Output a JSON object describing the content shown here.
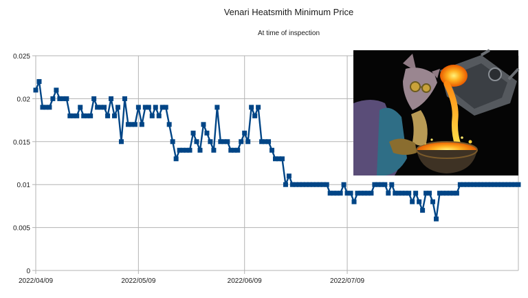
{
  "chart_data": {
    "type": "line",
    "title": "Venari Heatsmith Minimum Price",
    "subtitle": "At time of inspection",
    "xlabel": "",
    "ylabel": "",
    "ylim": [
      0,
      0.025
    ],
    "y_ticks": [
      "0",
      "0.005",
      "0.01",
      "0.015",
      "0.02",
      "0.025"
    ],
    "x_range": [
      "2022-04-09",
      "2022-08-28"
    ],
    "x_ticks": [
      {
        "label": "2022/04/09",
        "date": "2022-04-09"
      },
      {
        "label": "2022/05/09",
        "date": "2022-05-09"
      },
      {
        "label": "2022/06/09",
        "date": "2022-06-09"
      },
      {
        "label": "2022/07/09",
        "date": "2022-07-09"
      }
    ],
    "grid": true,
    "legend": "none",
    "line_color": "#004586",
    "marker": "square",
    "image_inset": "alchemist creature pouring molten metal from a crucible",
    "series": [
      {
        "points": [
          [
            "2022-04-09",
            0.021
          ],
          [
            "2022-04-10",
            0.022
          ],
          [
            "2022-04-11",
            0.019
          ],
          [
            "2022-04-12",
            0.019
          ],
          [
            "2022-04-13",
            0.019
          ],
          [
            "2022-04-14",
            0.02
          ],
          [
            "2022-04-15",
            0.021
          ],
          [
            "2022-04-16",
            0.02
          ],
          [
            "2022-04-17",
            0.02
          ],
          [
            "2022-04-18",
            0.02
          ],
          [
            "2022-04-19",
            0.018
          ],
          [
            "2022-04-20",
            0.018
          ],
          [
            "2022-04-21",
            0.018
          ],
          [
            "2022-04-22",
            0.019
          ],
          [
            "2022-04-23",
            0.018
          ],
          [
            "2022-04-24",
            0.018
          ],
          [
            "2022-04-25",
            0.018
          ],
          [
            "2022-04-26",
            0.02
          ],
          [
            "2022-04-27",
            0.019
          ],
          [
            "2022-04-28",
            0.019
          ],
          [
            "2022-04-29",
            0.019
          ],
          [
            "2022-04-30",
            0.018
          ],
          [
            "2022-05-01",
            0.02
          ],
          [
            "2022-05-02",
            0.018
          ],
          [
            "2022-05-03",
            0.019
          ],
          [
            "2022-05-04",
            0.015
          ],
          [
            "2022-05-05",
            0.02
          ],
          [
            "2022-05-06",
            0.017
          ],
          [
            "2022-05-07",
            0.017
          ],
          [
            "2022-05-08",
            0.017
          ],
          [
            "2022-05-09",
            0.019
          ],
          [
            "2022-05-10",
            0.017
          ],
          [
            "2022-05-11",
            0.019
          ],
          [
            "2022-05-12",
            0.019
          ],
          [
            "2022-05-13",
            0.018
          ],
          [
            "2022-05-14",
            0.019
          ],
          [
            "2022-05-15",
            0.018
          ],
          [
            "2022-05-16",
            0.019
          ],
          [
            "2022-05-17",
            0.019
          ],
          [
            "2022-05-18",
            0.017
          ],
          [
            "2022-05-19",
            0.015
          ],
          [
            "2022-05-20",
            0.013
          ],
          [
            "2022-05-21",
            0.014
          ],
          [
            "2022-05-22",
            0.014
          ],
          [
            "2022-05-23",
            0.014
          ],
          [
            "2022-05-24",
            0.014
          ],
          [
            "2022-05-25",
            0.016
          ],
          [
            "2022-05-26",
            0.015
          ],
          [
            "2022-05-27",
            0.014
          ],
          [
            "2022-05-28",
            0.017
          ],
          [
            "2022-05-29",
            0.016
          ],
          [
            "2022-05-30",
            0.015
          ],
          [
            "2022-05-31",
            0.014
          ],
          [
            "2022-06-01",
            0.019
          ],
          [
            "2022-06-02",
            0.015
          ],
          [
            "2022-06-03",
            0.015
          ],
          [
            "2022-06-04",
            0.015
          ],
          [
            "2022-06-05",
            0.014
          ],
          [
            "2022-06-06",
            0.014
          ],
          [
            "2022-06-07",
            0.014
          ],
          [
            "2022-06-08",
            0.015
          ],
          [
            "2022-06-09",
            0.016
          ],
          [
            "2022-06-10",
            0.015
          ],
          [
            "2022-06-11",
            0.019
          ],
          [
            "2022-06-12",
            0.018
          ],
          [
            "2022-06-13",
            0.019
          ],
          [
            "2022-06-14",
            0.015
          ],
          [
            "2022-06-15",
            0.015
          ],
          [
            "2022-06-16",
            0.015
          ],
          [
            "2022-06-17",
            0.014
          ],
          [
            "2022-06-18",
            0.013
          ],
          [
            "2022-06-19",
            0.013
          ],
          [
            "2022-06-20",
            0.013
          ],
          [
            "2022-06-21",
            0.01
          ],
          [
            "2022-06-22",
            0.011
          ],
          [
            "2022-06-23",
            0.01
          ],
          [
            "2022-06-24",
            0.01
          ],
          [
            "2022-06-25",
            0.01
          ],
          [
            "2022-06-26",
            0.01
          ],
          [
            "2022-06-27",
            0.01
          ],
          [
            "2022-06-28",
            0.01
          ],
          [
            "2022-06-29",
            0.01
          ],
          [
            "2022-06-30",
            0.01
          ],
          [
            "2022-07-01",
            0.01
          ],
          [
            "2022-07-02",
            0.01
          ],
          [
            "2022-07-03",
            0.01
          ],
          [
            "2022-07-04",
            0.009
          ],
          [
            "2022-07-05",
            0.009
          ],
          [
            "2022-07-06",
            0.009
          ],
          [
            "2022-07-07",
            0.009
          ],
          [
            "2022-07-08",
            0.01
          ],
          [
            "2022-07-09",
            0.009
          ],
          [
            "2022-07-10",
            0.009
          ],
          [
            "2022-07-11",
            0.008
          ],
          [
            "2022-07-12",
            0.009
          ],
          [
            "2022-07-13",
            0.009
          ],
          [
            "2022-07-14",
            0.009
          ],
          [
            "2022-07-15",
            0.009
          ],
          [
            "2022-07-16",
            0.009
          ],
          [
            "2022-07-17",
            0.01
          ],
          [
            "2022-07-18",
            0.01
          ],
          [
            "2022-07-19",
            0.01
          ],
          [
            "2022-07-20",
            0.01
          ],
          [
            "2022-07-21",
            0.009
          ],
          [
            "2022-07-22",
            0.01
          ],
          [
            "2022-07-23",
            0.009
          ],
          [
            "2022-07-24",
            0.009
          ],
          [
            "2022-07-25",
            0.009
          ],
          [
            "2022-07-26",
            0.009
          ],
          [
            "2022-07-27",
            0.009
          ],
          [
            "2022-07-28",
            0.008
          ],
          [
            "2022-07-29",
            0.009
          ],
          [
            "2022-07-30",
            0.008
          ],
          [
            "2022-07-31",
            0.007
          ],
          [
            "2022-08-01",
            0.009
          ],
          [
            "2022-08-02",
            0.009
          ],
          [
            "2022-08-03",
            0.008
          ],
          [
            "2022-08-04",
            0.006
          ],
          [
            "2022-08-05",
            0.009
          ],
          [
            "2022-08-06",
            0.009
          ],
          [
            "2022-08-07",
            0.009
          ],
          [
            "2022-08-08",
            0.009
          ],
          [
            "2022-08-09",
            0.009
          ],
          [
            "2022-08-10",
            0.009
          ],
          [
            "2022-08-11",
            0.01
          ],
          [
            "2022-08-12",
            0.01
          ],
          [
            "2022-08-13",
            0.01
          ],
          [
            "2022-08-14",
            0.01
          ],
          [
            "2022-08-15",
            0.01
          ],
          [
            "2022-08-16",
            0.01
          ],
          [
            "2022-08-17",
            0.01
          ],
          [
            "2022-08-18",
            0.01
          ],
          [
            "2022-08-19",
            0.01
          ],
          [
            "2022-08-20",
            0.01
          ],
          [
            "2022-08-21",
            0.01
          ],
          [
            "2022-08-22",
            0.01
          ],
          [
            "2022-08-23",
            0.01
          ],
          [
            "2022-08-24",
            0.01
          ],
          [
            "2022-08-25",
            0.01
          ],
          [
            "2022-08-26",
            0.01
          ],
          [
            "2022-08-27",
            0.01
          ],
          [
            "2022-08-28",
            0.01
          ]
        ]
      }
    ]
  }
}
